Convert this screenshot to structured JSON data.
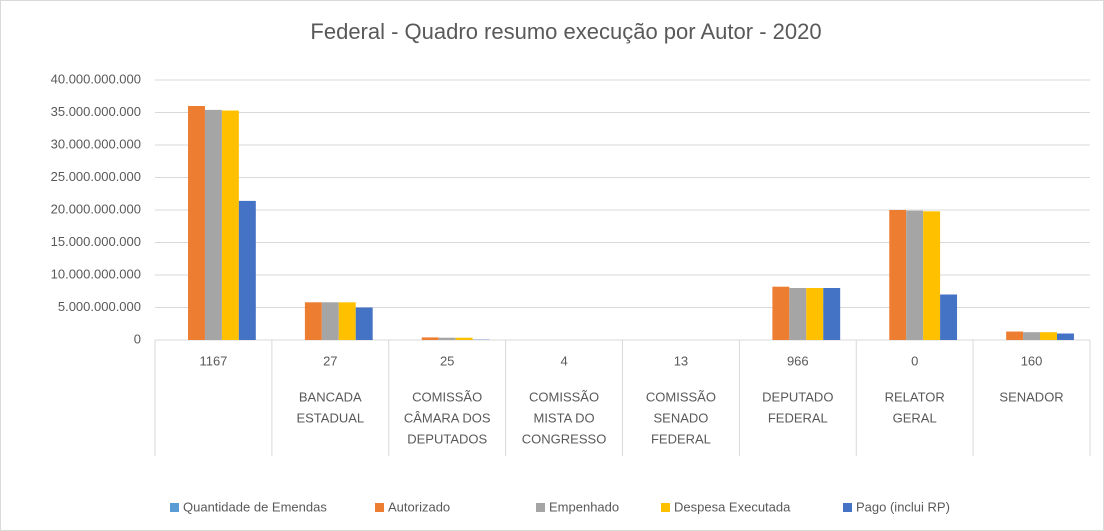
{
  "chart_data": {
    "type": "bar",
    "title": "Federal - Quadro resumo execução por Autor - 2020",
    "categories": [
      null,
      [
        "BANCADA",
        "ESTADUAL"
      ],
      [
        "COMISSÃO",
        "CÂMARA DOS",
        "DEPUTADOS"
      ],
      [
        "COMISSÃO",
        "MISTA DO",
        "CONGRESSO"
      ],
      [
        "COMISSÃO",
        "SENADO",
        "FEDERAL"
      ],
      [
        "DEPUTADO",
        "FEDERAL"
      ],
      [
        "RELATOR",
        "GERAL"
      ],
      [
        "SENADOR"
      ]
    ],
    "series": [
      {
        "name": "Quantidade de Emendas",
        "color": "#5b9bd5",
        "values": [
          1167,
          27,
          25,
          4,
          13,
          966,
          0,
          160
        ]
      },
      {
        "name": "Autorizado",
        "color": "#ed7d31",
        "values": [
          36000000000,
          5800000000,
          400000000,
          0,
          0,
          8200000000,
          20000000000,
          1300000000
        ]
      },
      {
        "name": "Empenhado",
        "color": "#a5a5a5",
        "values": [
          35400000000,
          5800000000,
          350000000,
          0,
          0,
          8000000000,
          19900000000,
          1200000000
        ]
      },
      {
        "name": "Despesa Executada",
        "color": "#ffc000",
        "values": [
          35300000000,
          5800000000,
          350000000,
          0,
          0,
          8000000000,
          19800000000,
          1200000000
        ]
      },
      {
        "name": "Pago (inclui RP)",
        "color": "#4472c4",
        "values": [
          21400000000,
          5000000000,
          50000000,
          0,
          0,
          8000000000,
          7000000000,
          1000000000
        ]
      }
    ],
    "ylim": [
      0,
      40000000000
    ],
    "yticks": [
      0,
      {
        "value": 5000000000,
        "label": "5.000.000.000"
      },
      {
        "value": 10000000000,
        "label": "10.000.000.000"
      },
      {
        "value": 15000000000,
        "label": "15.000.000.000"
      },
      {
        "value": 20000000000,
        "label": "20.000.000.000"
      },
      {
        "value": 25000000000,
        "label": "25.000.000.000"
      },
      {
        "value": 30000000000,
        "label": "30.000.000.000"
      },
      {
        "value": 35000000000,
        "label": "35.000.000.000"
      },
      {
        "value": 40000000000,
        "label": "40.000.000.000"
      }
    ],
    "grid": true,
    "legend": "bottom"
  }
}
